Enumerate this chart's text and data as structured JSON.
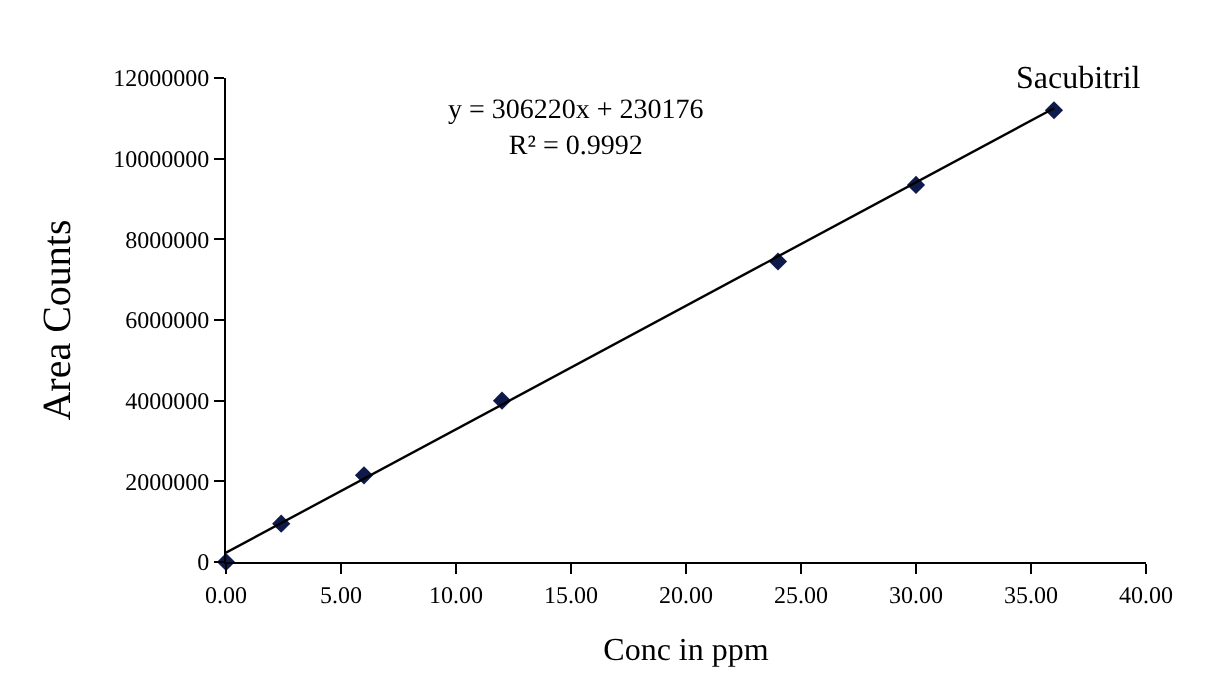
{
  "chart_data": {
    "type": "scatter",
    "xlabel": "Conc in ppm",
    "ylabel": "Area Counts",
    "x": [
      0,
      2.4,
      6,
      12,
      24,
      30,
      36
    ],
    "series": [
      {
        "color": "#0d1a4a",
        "values": [
          0,
          950000,
          2150000,
          4000000,
          7450000,
          9350000,
          11200000
        ]
      },
      {
        "type": "line",
        "marker": "none",
        "color": "#000000",
        "x": [
          0,
          36
        ],
        "values": [
          230000,
          11250000
        ]
      }
    ],
    "annotations": [
      "Sacubitril",
      "y = 306220x + 230176\nR² = 0.9992"
    ],
    "xlim": [
      0,
      40
    ],
    "xticks": [
      {
        "value": 0,
        "label": "0.00"
      },
      {
        "value": 5,
        "label": "5.00"
      },
      {
        "value": 10,
        "label": "10.00"
      },
      {
        "value": 15,
        "label": "15.00"
      },
      {
        "value": 20,
        "label": "20.00"
      },
      {
        "value": 25,
        "label": "25.00"
      },
      {
        "value": 30,
        "label": "30.00"
      },
      {
        "value": 35,
        "label": "35.00"
      },
      {
        "value": 40,
        "label": "40.00"
      }
    ],
    "ylim": [
      0,
      12000000
    ],
    "yticks": [
      0,
      2000000,
      4000000,
      6000000,
      8000000,
      10000000,
      12000000
    ],
    "legend": false,
    "marker": "diamond",
    "line_style": "solid"
  }
}
